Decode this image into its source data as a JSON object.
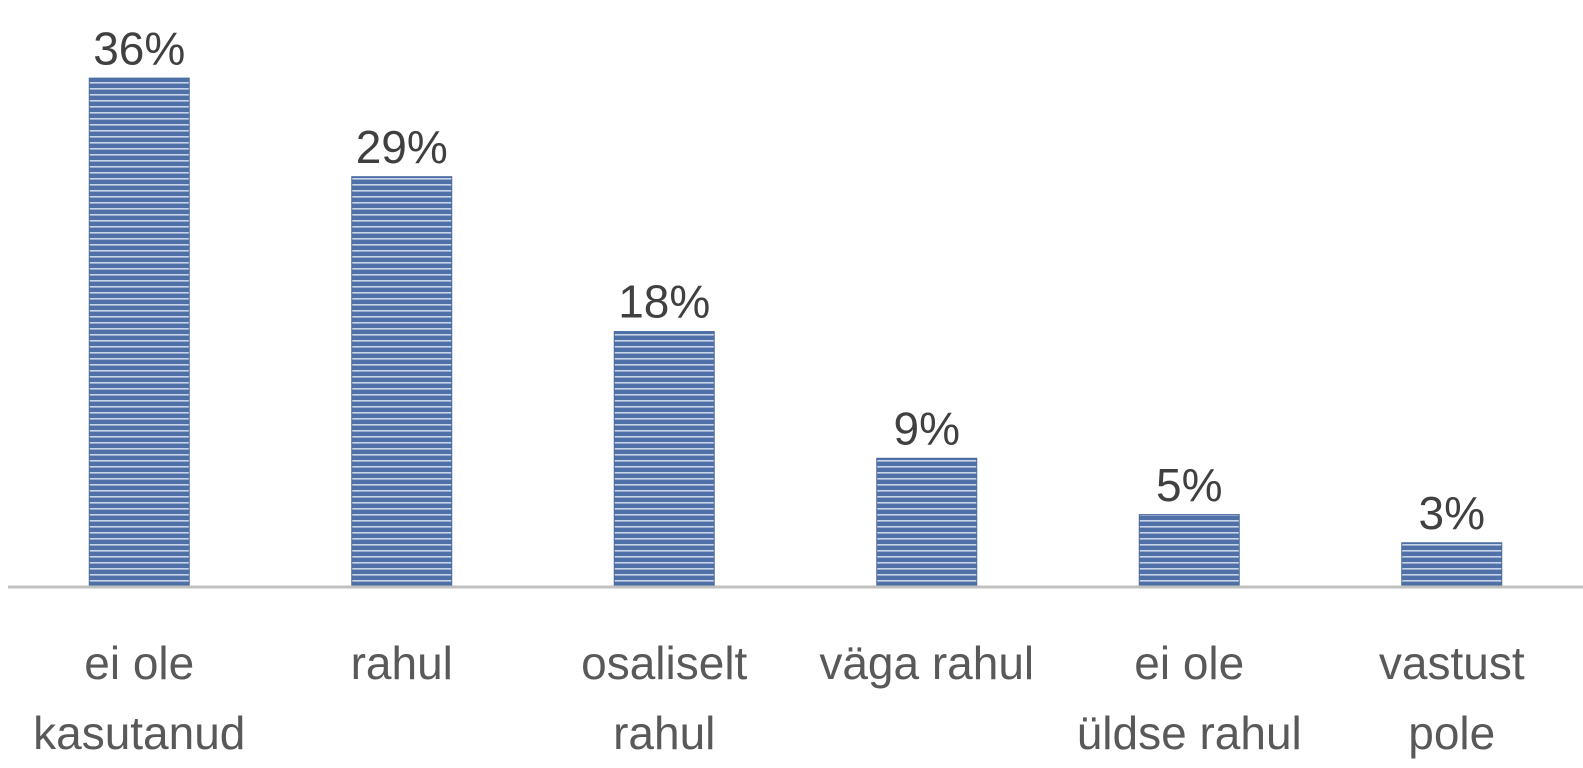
{
  "chart_data": {
    "type": "bar",
    "categories": [
      "ei ole\nkasutanud",
      "rahul",
      "osaliselt\nrahul",
      "väga rahul",
      "ei ole\nüldse rahul",
      "vastust\npole"
    ],
    "values": [
      36,
      29,
      18,
      9,
      5,
      3
    ],
    "value_labels": [
      "36%",
      "29%",
      "18%",
      "9%",
      "5%",
      "3%"
    ],
    "color": "#4f71a8"
  }
}
